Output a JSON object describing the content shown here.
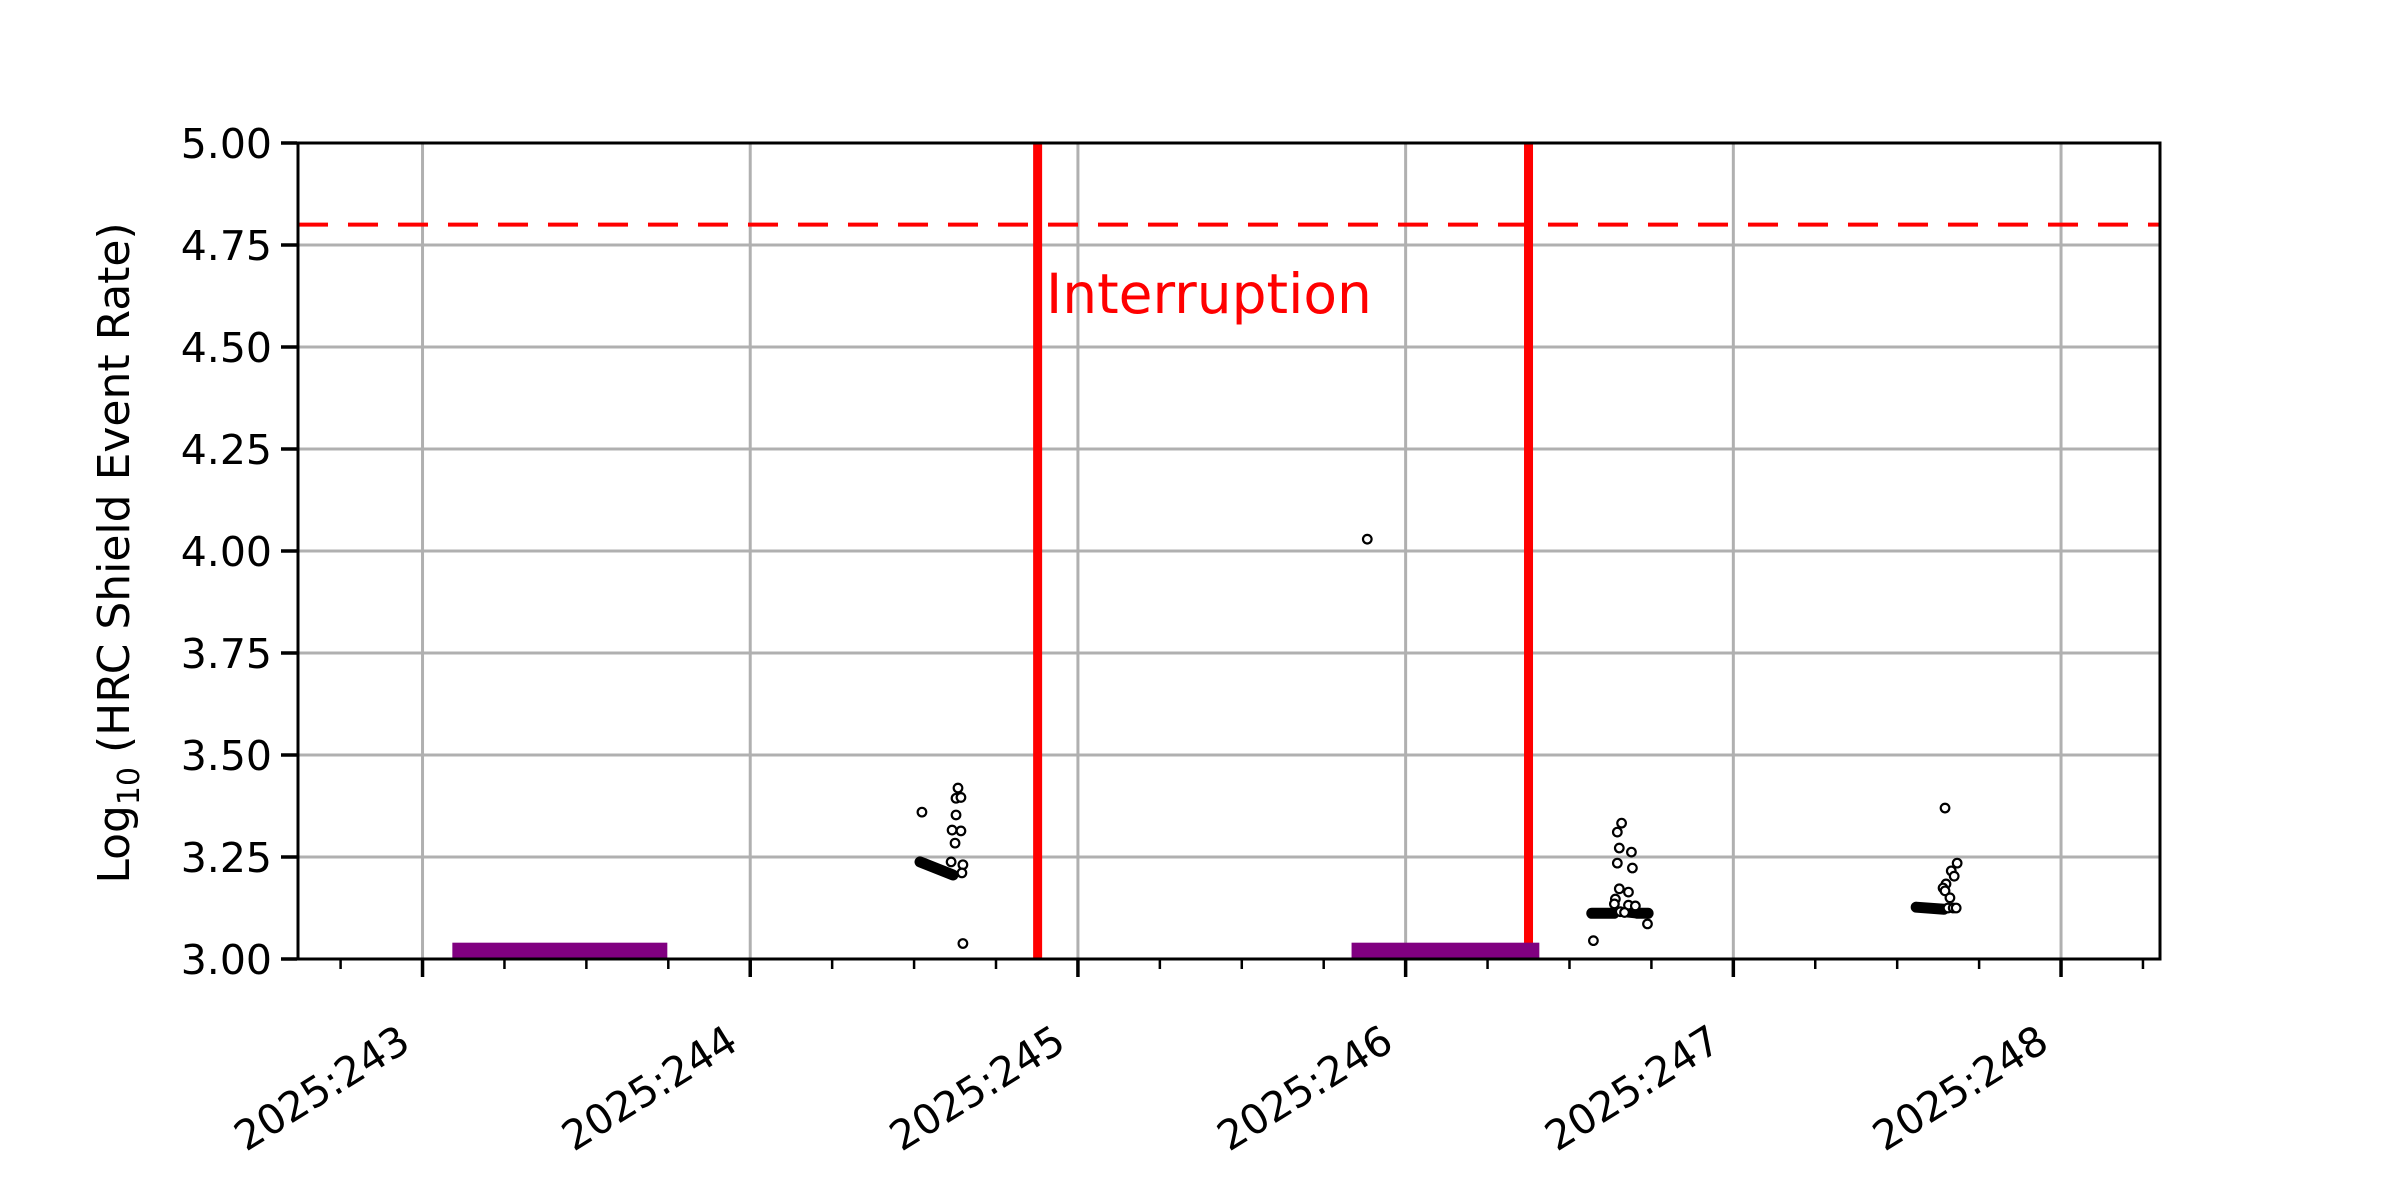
{
  "chart_data": {
    "type": "scatter",
    "title": "",
    "xlabel": "",
    "ylabel": "Log10 (HRC Shield Event Rate)",
    "ylabel_parts": {
      "pre": "Log",
      "sub": "10",
      "post": " (HRC Shield Event Rate)"
    },
    "xlim": [
      242.62,
      248.302
    ],
    "ylim": [
      3.0,
      5.0
    ],
    "grid": true,
    "grid_color": "#b0b0b0",
    "spine_color": "#000000",
    "xticks": {
      "values": [
        243,
        244,
        245,
        246,
        247,
        248
      ],
      "labels": [
        "2025:243",
        "2025:244",
        "2025:245",
        "2025:246",
        "2025:247",
        "2025:248"
      ],
      "minor_step": 0.25,
      "label_rotation_deg": 32
    },
    "yticks": {
      "values": [
        3.0,
        3.25,
        3.5,
        3.75,
        4.0,
        4.25,
        4.5,
        4.75,
        5.0
      ],
      "labels": [
        "3.00",
        "3.25",
        "3.50",
        "3.75",
        "4.00",
        "4.25",
        "4.50",
        "4.75",
        "5.00"
      ]
    },
    "threshold_line": {
      "y": 4.8,
      "color": "#ff0000",
      "style": "dashed"
    },
    "interruption_lines": {
      "x": [
        244.877,
        246.375
      ],
      "color": "#ff0000"
    },
    "annotation": {
      "text": "Interruption",
      "x": 244.9,
      "y": 4.66,
      "color": "#ff0000"
    },
    "radzone_bars": {
      "color": "#800080",
      "top_value": 3.04,
      "intervals": [
        [
          243.091,
          243.747
        ],
        [
          245.835,
          246.408
        ]
      ]
    },
    "series": [
      {
        "name": "hrc-shield-rate",
        "marker": "open-circle",
        "color": "#000000",
        "points": [
          [
            244.634,
            3.419
          ],
          [
            244.628,
            3.394
          ],
          [
            244.643,
            3.396
          ],
          [
            244.524,
            3.36
          ],
          [
            244.628,
            3.353
          ],
          [
            244.616,
            3.316
          ],
          [
            244.643,
            3.314
          ],
          [
            244.625,
            3.284
          ],
          [
            244.613,
            3.238
          ],
          [
            244.649,
            3.231
          ],
          [
            244.646,
            3.211
          ],
          [
            244.649,
            3.038
          ],
          [
            245.883,
            4.029
          ],
          [
            246.659,
            3.333
          ],
          [
            246.646,
            3.311
          ],
          [
            246.652,
            3.272
          ],
          [
            246.689,
            3.262
          ],
          [
            246.646,
            3.235
          ],
          [
            246.692,
            3.223
          ],
          [
            246.652,
            3.172
          ],
          [
            246.68,
            3.164
          ],
          [
            246.64,
            3.147
          ],
          [
            246.637,
            3.135
          ],
          [
            246.68,
            3.132
          ],
          [
            246.701,
            3.13
          ],
          [
            246.655,
            3.116
          ],
          [
            246.668,
            3.114
          ],
          [
            246.738,
            3.086
          ],
          [
            246.573,
            3.045
          ],
          [
            247.646,
            3.37
          ],
          [
            247.683,
            3.235
          ],
          [
            247.665,
            3.216
          ],
          [
            247.674,
            3.203
          ],
          [
            247.649,
            3.184
          ],
          [
            247.64,
            3.174
          ],
          [
            247.646,
            3.167
          ],
          [
            247.661,
            3.15
          ],
          [
            247.655,
            3.125
          ],
          [
            247.671,
            3.125
          ],
          [
            247.68,
            3.125
          ]
        ],
        "dense_segments": [
          [
            244.518,
            3.238,
            244.619,
            3.206
          ],
          [
            246.568,
            3.112,
            246.636,
            3.112
          ],
          [
            246.678,
            3.115,
            246.703,
            3.113
          ],
          [
            246.708,
            3.112,
            246.74,
            3.112
          ],
          [
            247.558,
            3.127,
            247.643,
            3.122
          ]
        ]
      }
    ]
  }
}
